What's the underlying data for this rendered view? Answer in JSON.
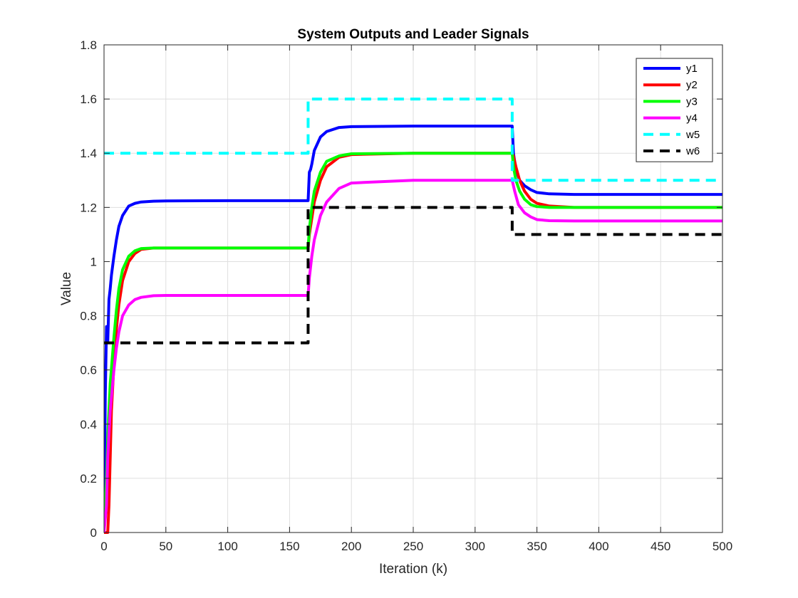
{
  "chart_data": {
    "type": "line",
    "title": "System Outputs and Leader Signals",
    "xlabel": "Iteration (k)",
    "ylabel": "Value",
    "xlim": [
      0,
      500
    ],
    "ylim": [
      0,
      1.8
    ],
    "xticks": [
      0,
      50,
      100,
      150,
      200,
      250,
      300,
      350,
      400,
      450,
      500
    ],
    "yticks": [
      0,
      0.2,
      0.4,
      0.6,
      0.8,
      1,
      1.2,
      1.4,
      1.6,
      1.8
    ],
    "xtick_labels": [
      "0",
      "50",
      "100",
      "150",
      "200",
      "250",
      "300",
      "350",
      "400",
      "450",
      "500"
    ],
    "ytick_labels": [
      "0",
      "0.2",
      "0.4",
      "0.6",
      "0.8",
      "1",
      "1.2",
      "1.4",
      "1.6",
      "1.8"
    ],
    "grid": true,
    "legend_position": "top-right",
    "series": [
      {
        "name": "y1",
        "color": "#0000ff",
        "style": "solid",
        "x": [
          0,
          1,
          2,
          2.5,
          3,
          4,
          5,
          6,
          8,
          10,
          12,
          15,
          20,
          25,
          30,
          40,
          50,
          100,
          165,
          166,
          167,
          168,
          170,
          175,
          180,
          190,
          200,
          250,
          330,
          331,
          333,
          336,
          340,
          345,
          350,
          360,
          380,
          500
        ],
        "y": [
          0.0,
          0.5,
          0.76,
          0.7,
          0.7,
          0.86,
          0.9,
          0.95,
          1.02,
          1.08,
          1.13,
          1.17,
          1.205,
          1.215,
          1.22,
          1.223,
          1.224,
          1.225,
          1.225,
          1.33,
          1.34,
          1.36,
          1.41,
          1.46,
          1.48,
          1.495,
          1.498,
          1.5,
          1.5,
          1.4,
          1.34,
          1.3,
          1.28,
          1.265,
          1.255,
          1.25,
          1.248,
          1.248
        ]
      },
      {
        "name": "y2",
        "color": "#ff0000",
        "style": "solid",
        "x": [
          0,
          3,
          4,
          6,
          8,
          10,
          12,
          15,
          20,
          25,
          30,
          40,
          50,
          100,
          165,
          166,
          168,
          170,
          175,
          180,
          190,
          200,
          250,
          330,
          331,
          333,
          336,
          340,
          345,
          350,
          360,
          380,
          500
        ],
        "y": [
          0.0,
          0.0,
          0.1,
          0.45,
          0.62,
          0.75,
          0.84,
          0.93,
          1.0,
          1.03,
          1.045,
          1.05,
          1.05,
          1.05,
          1.05,
          1.1,
          1.16,
          1.22,
          1.3,
          1.35,
          1.385,
          1.395,
          1.4,
          1.4,
          1.39,
          1.35,
          1.3,
          1.26,
          1.23,
          1.215,
          1.205,
          1.2,
          1.2
        ]
      },
      {
        "name": "y3",
        "color": "#00ff00",
        "style": "solid",
        "x": [
          0,
          2,
          3,
          5,
          8,
          10,
          12,
          15,
          20,
          25,
          30,
          40,
          50,
          100,
          165,
          166,
          168,
          170,
          175,
          180,
          190,
          200,
          250,
          330,
          331,
          333,
          336,
          340,
          345,
          350,
          360,
          380,
          500
        ],
        "y": [
          0.0,
          0.2,
          0.35,
          0.55,
          0.72,
          0.82,
          0.9,
          0.97,
          1.02,
          1.04,
          1.048,
          1.05,
          1.05,
          1.05,
          1.05,
          1.12,
          1.2,
          1.26,
          1.33,
          1.37,
          1.39,
          1.398,
          1.4,
          1.4,
          1.35,
          1.3,
          1.26,
          1.23,
          1.21,
          1.203,
          1.2,
          1.2,
          1.2
        ]
      },
      {
        "name": "y4",
        "color": "#ff00ff",
        "style": "solid",
        "x": [
          0,
          2,
          3,
          5,
          8,
          10,
          12,
          15,
          20,
          25,
          30,
          40,
          50,
          100,
          165,
          166,
          168,
          170,
          175,
          180,
          190,
          200,
          250,
          330,
          332,
          335,
          340,
          345,
          350,
          360,
          380,
          500
        ],
        "y": [
          0.0,
          0.1,
          0.28,
          0.45,
          0.6,
          0.68,
          0.74,
          0.8,
          0.84,
          0.86,
          0.868,
          0.874,
          0.875,
          0.875,
          0.875,
          0.94,
          1.02,
          1.08,
          1.17,
          1.22,
          1.27,
          1.29,
          1.3,
          1.3,
          1.26,
          1.21,
          1.18,
          1.165,
          1.155,
          1.151,
          1.15,
          1.15
        ]
      },
      {
        "name": "w5",
        "color": "#00ffff",
        "style": "dashed",
        "x": [
          0,
          165,
          165,
          330,
          330,
          500
        ],
        "y": [
          1.4,
          1.4,
          1.6,
          1.6,
          1.3,
          1.3
        ]
      },
      {
        "name": "w6",
        "color": "#000000",
        "style": "dashed",
        "x": [
          0,
          165,
          165,
          330,
          330,
          500
        ],
        "y": [
          0.7,
          0.7,
          1.2,
          1.2,
          1.1,
          1.1
        ]
      }
    ]
  }
}
